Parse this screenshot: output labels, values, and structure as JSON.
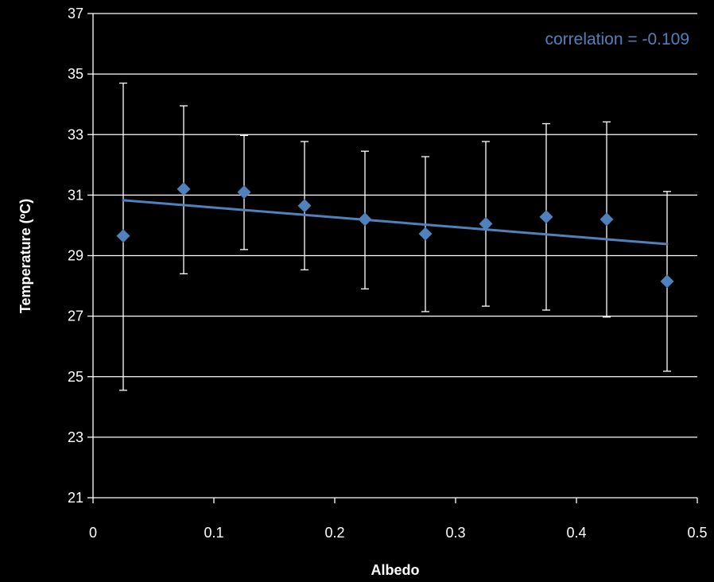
{
  "chart_data": {
    "type": "scatter",
    "title": "",
    "xlabel": "Albedo",
    "ylabel": "Temperature (ºC)",
    "xlim": [
      0,
      0.5
    ],
    "ylim": [
      21,
      37
    ],
    "x_ticks": [
      0,
      0.1,
      0.2,
      0.3,
      0.4,
      0.5
    ],
    "x_tick_labels": [
      "0",
      "0.1",
      "0.2",
      "0.3",
      "0.4",
      "0.5"
    ],
    "y_ticks": [
      21,
      23,
      25,
      27,
      29,
      31,
      33,
      35,
      37
    ],
    "y_tick_labels": [
      "21",
      "23",
      "25",
      "27",
      "29",
      "31",
      "33",
      "35",
      "37"
    ],
    "grid": "horizontal",
    "legend": "none",
    "background_color": "#000000",
    "foreground_color": "#ffffff",
    "series": [
      {
        "color": "#4f81bd",
        "marker": "diamond",
        "points": [
          {
            "x": 0.025,
            "y": 29.65,
            "err_low": 24.55,
            "err_high": 34.7
          },
          {
            "x": 0.075,
            "y": 31.2,
            "err_low": 28.4,
            "err_high": 33.95
          },
          {
            "x": 0.125,
            "y": 31.1,
            "err_low": 29.2,
            "err_high": 32.97
          },
          {
            "x": 0.175,
            "y": 30.65,
            "err_low": 28.53,
            "err_high": 32.77
          },
          {
            "x": 0.225,
            "y": 30.2,
            "err_low": 27.9,
            "err_high": 32.45
          },
          {
            "x": 0.275,
            "y": 29.72,
            "err_low": 27.15,
            "err_high": 32.27
          },
          {
            "x": 0.325,
            "y": 30.05,
            "err_low": 27.33,
            "err_high": 32.77
          },
          {
            "x": 0.375,
            "y": 30.28,
            "err_low": 27.2,
            "err_high": 33.36
          },
          {
            "x": 0.425,
            "y": 30.2,
            "err_low": 26.97,
            "err_high": 33.42
          },
          {
            "x": 0.475,
            "y": 28.15,
            "err_low": 25.18,
            "err_high": 31.12
          }
        ]
      }
    ],
    "trendline": {
      "type": "linear",
      "color": "#4f81bd",
      "x_start": 0.025,
      "y_start": 30.83,
      "x_end": 0.475,
      "y_end": 29.38
    },
    "annotations": [
      {
        "text": "correlation = -0.109",
        "color": "#4f81bd",
        "position": "top-right"
      }
    ]
  }
}
